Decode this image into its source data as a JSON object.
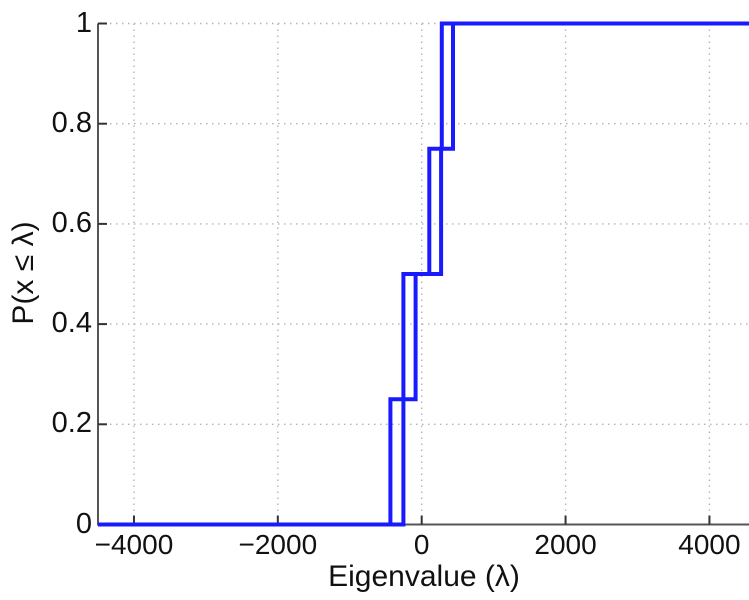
{
  "chart_data": {
    "type": "line",
    "subtype": "empirical-cdf-staircase",
    "title": "",
    "xlabel": "Eigenvalue (λ)",
    "ylabel": "P(x ≤ λ)",
    "xlim": [
      -4500,
      4550
    ],
    "ylim": [
      0,
      1
    ],
    "grid": "dotted",
    "legend": "none",
    "x_ticks": [
      -4000,
      -2000,
      0,
      2000,
      4000
    ],
    "x_tick_labels": [
      "−4000",
      "−2000",
      "0",
      "2000",
      "4000"
    ],
    "y_ticks": [
      0,
      0.2,
      0.4,
      0.6,
      0.8,
      1
    ],
    "y_tick_labels": [
      "0",
      "0.2",
      "0.4",
      "0.6",
      "0.8",
      "1"
    ],
    "series": [
      {
        "name": "ecdf-curve-left",
        "description": "4-point empirical CDF, steps of 0.25",
        "jump_x": [
          -435,
          -255,
          105,
          280
        ],
        "step_levels": [
          0,
          0.25,
          0.5,
          0.75,
          1
        ]
      },
      {
        "name": "ecdf-curve-right",
        "description": "4-point empirical CDF, steps of 0.25",
        "jump_x": [
          -255,
          -85,
          270,
          435
        ],
        "step_levels": [
          0,
          0.25,
          0.5,
          0.75,
          1
        ]
      }
    ],
    "line_width": 4,
    "colors": {
      "line": "#1a1aff",
      "axis": "#555555",
      "tick": "#333333",
      "grid": "#b4b4b4",
      "text": "#111111",
      "background": "#ffffff"
    }
  }
}
